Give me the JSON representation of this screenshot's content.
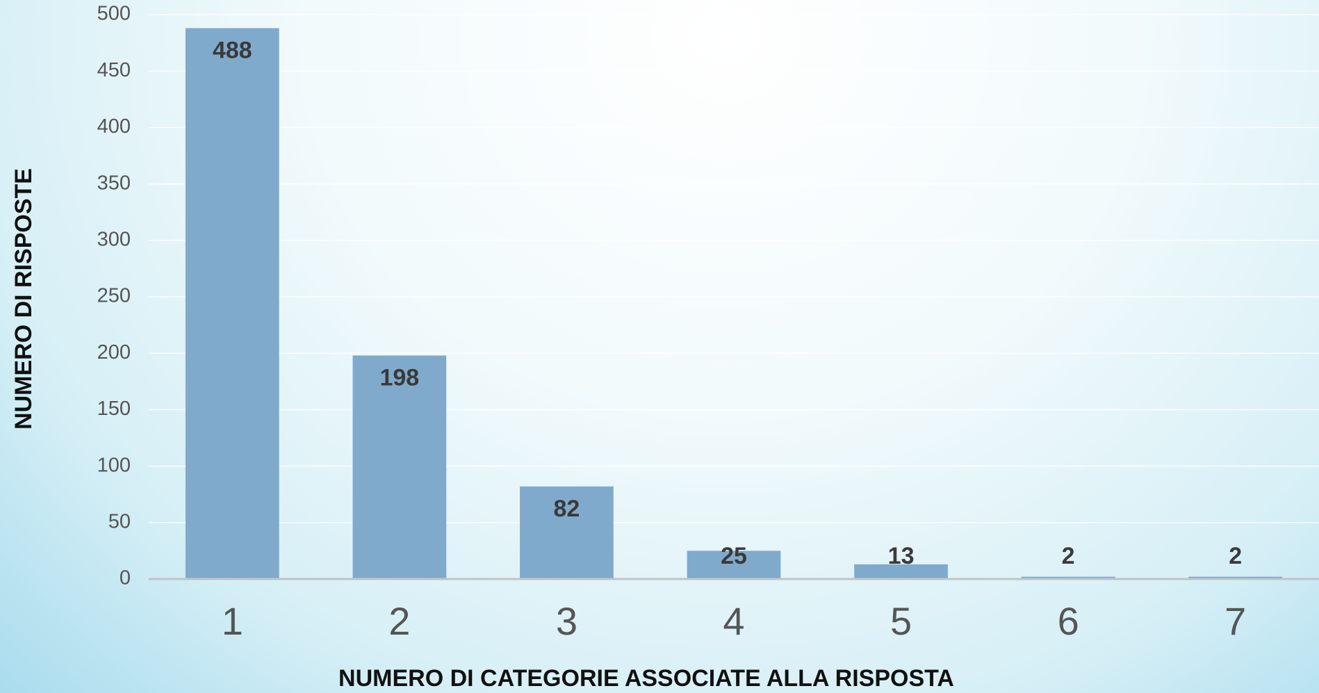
{
  "chart_data": {
    "type": "bar",
    "x_label": "NUMERO DI CATEGORIE ASSOCIATE ALLA RISPOSTA",
    "y_label": "NUMERO DI RISPOSTE",
    "categories": [
      "1",
      "2",
      "3",
      "4",
      "5",
      "6",
      "7"
    ],
    "values": [
      488,
      198,
      82,
      25,
      13,
      2,
      2
    ],
    "color": "#80aacb",
    "ylim": [
      0,
      500
    ],
    "yticks": [
      0,
      50,
      100,
      150,
      200,
      250,
      300,
      350,
      400,
      450,
      500
    ],
    "grid": true
  }
}
